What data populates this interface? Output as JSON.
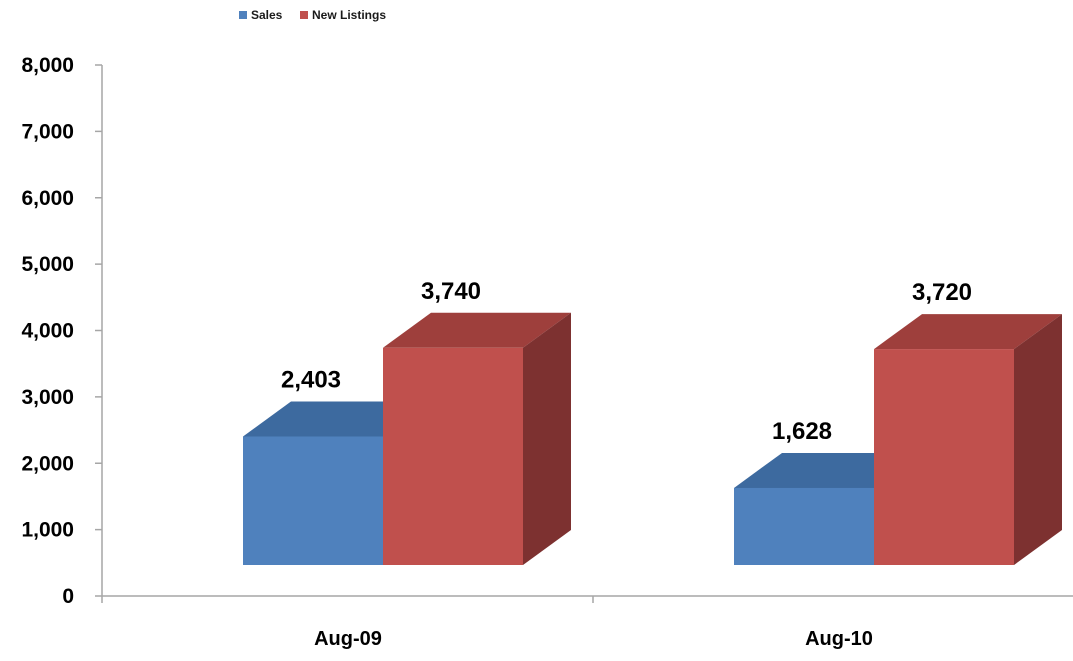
{
  "colors": {
    "sales": "#4f81bd",
    "sales_top": "#3d6a9f",
    "new_listings": "#c0504d",
    "new_listings_top": "#9e3f3c",
    "new_listings_side": "#7d3130",
    "axis": "#a6a6a6"
  },
  "chart_data": {
    "type": "bar",
    "title": "",
    "xlabel": "",
    "ylabel": "",
    "ylim": [
      0,
      8000
    ],
    "yticks": [
      "0",
      "1,000",
      "2,000",
      "3,000",
      "4,000",
      "5,000",
      "6,000",
      "7,000",
      "8,000"
    ],
    "categories": [
      "Aug-09",
      "Aug-10"
    ],
    "series": [
      {
        "name": "Sales",
        "values": [
          2403,
          1628
        ],
        "labels": [
          "2,403",
          "1,628"
        ]
      },
      {
        "name": "New Listings",
        "values": [
          3740,
          3720
        ],
        "labels": [
          "3,740",
          "3,720"
        ]
      }
    ],
    "legend_position": "top-left",
    "grid": false,
    "style": "3d-clustered-column"
  }
}
